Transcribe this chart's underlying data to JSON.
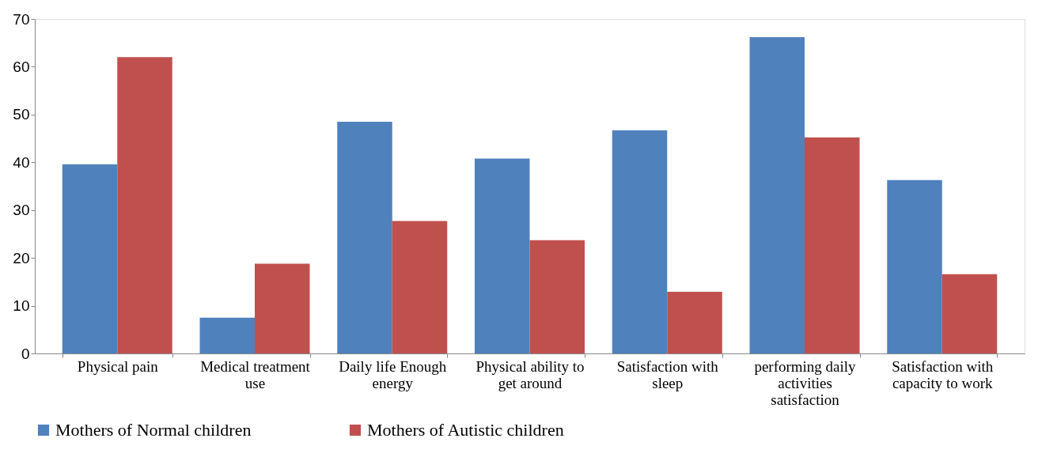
{
  "chart_data": {
    "type": "bar",
    "categories": [
      "Physical pain",
      "Medical treatment use",
      "Daily life Enough energy",
      "Physical ability to get around",
      "Satisfaction with sleep",
      "performing daily activities satisfaction",
      "Satisfaction with capacity to work"
    ],
    "series": [
      {
        "name": "Mothers of Normal children",
        "color": "#4f81bd",
        "values": [
          39.6,
          7.5,
          48.5,
          40.8,
          46.7,
          66.2,
          36.3
        ]
      },
      {
        "name": "Mothers of Autistic children",
        "color": "#c0504d",
        "values": [
          62.0,
          18.8,
          27.7,
          23.7,
          12.9,
          45.2,
          16.6
        ]
      }
    ],
    "ylim": [
      0,
      70
    ],
    "yticks": [
      0,
      10,
      20,
      30,
      40,
      50,
      60,
      70
    ],
    "grid": false,
    "legend": "bottom"
  }
}
